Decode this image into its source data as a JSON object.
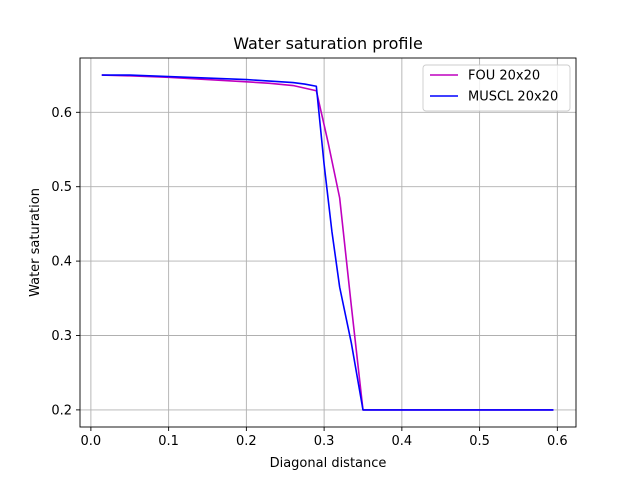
{
  "chart_data": {
    "type": "line",
    "title": "Water saturation profile",
    "xlabel": "Diagonal distance",
    "ylabel": "Water saturation",
    "xlim": [
      -0.014,
      0.624
    ],
    "ylim": [
      0.177,
      0.673
    ],
    "xticks": [
      0.0,
      0.1,
      0.2,
      0.3,
      0.4,
      0.5,
      0.6
    ],
    "xtick_labels": [
      "0.0",
      "0.1",
      "0.2",
      "0.3",
      "0.4",
      "0.5",
      "0.6"
    ],
    "yticks": [
      0.2,
      0.3,
      0.4,
      0.5,
      0.6
    ],
    "ytick_labels": [
      "0.2",
      "0.3",
      "0.4",
      "0.5",
      "0.6"
    ],
    "grid": true,
    "legend_position": "top-right",
    "series": [
      {
        "name": "FOU 20x20",
        "color": "#bf00bf",
        "x": [
          0.014,
          0.05,
          0.1,
          0.15,
          0.2,
          0.23,
          0.26,
          0.29,
          0.305,
          0.32,
          0.335,
          0.35,
          0.4,
          0.5,
          0.595
        ],
        "y": [
          0.65,
          0.649,
          0.647,
          0.644,
          0.641,
          0.639,
          0.636,
          0.629,
          0.56,
          0.485,
          0.34,
          0.2,
          0.2,
          0.2,
          0.2
        ]
      },
      {
        "name": "MUSCL 20x20",
        "color": "#0000ff",
        "x": [
          0.014,
          0.05,
          0.1,
          0.15,
          0.2,
          0.23,
          0.26,
          0.275,
          0.29,
          0.3,
          0.31,
          0.32,
          0.335,
          0.35,
          0.4,
          0.5,
          0.595
        ],
        "y": [
          0.65,
          0.65,
          0.648,
          0.646,
          0.644,
          0.642,
          0.64,
          0.638,
          0.635,
          0.53,
          0.44,
          0.365,
          0.29,
          0.2,
          0.2,
          0.2,
          0.2
        ]
      }
    ]
  }
}
